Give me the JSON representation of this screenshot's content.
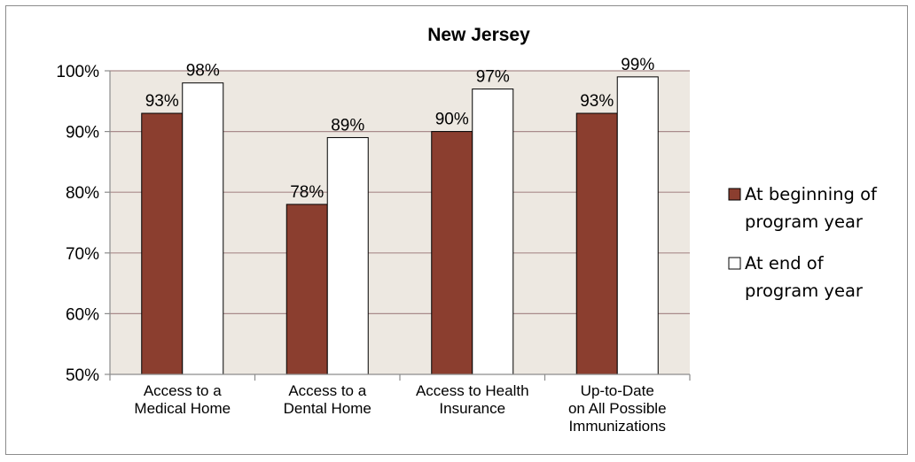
{
  "chart_data": {
    "type": "bar",
    "title": "New Jersey",
    "categories": [
      [
        "Access to a",
        "Medical Home"
      ],
      [
        "Access to a",
        "Dental Home"
      ],
      [
        "Access to Health",
        "Insurance"
      ],
      [
        "Up-to-Date",
        "on All Possible",
        "Immunizations"
      ]
    ],
    "series": [
      {
        "name": [
          "At beginning of",
          "program year"
        ],
        "values": [
          93,
          78,
          90,
          93
        ],
        "labels": [
          "93%",
          "78%",
          "90%",
          "93%"
        ],
        "color": "#8b3e2f"
      },
      {
        "name": [
          "At end of",
          "program year"
        ],
        "values": [
          98,
          89,
          97,
          99
        ],
        "labels": [
          "98%",
          "89%",
          "97%",
          "99%"
        ],
        "color": "#ffffff"
      }
    ],
    "ylim": [
      50,
      100
    ],
    "yticks": [
      50,
      60,
      70,
      80,
      90,
      100
    ],
    "ytick_labels": [
      "50%",
      "60%",
      "70%",
      "80%",
      "90%",
      "100%"
    ],
    "grid": true,
    "plot_background": "#ede8e1",
    "gridline_color": "#a98b8b",
    "legend_position": "right",
    "xlabel": "",
    "ylabel": ""
  }
}
